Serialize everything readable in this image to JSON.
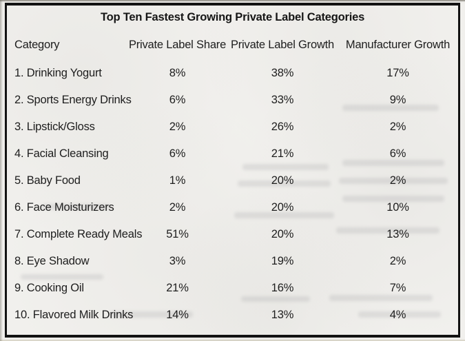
{
  "table": {
    "title": "Top Ten Fastest Growing Private Label Categories",
    "columns": [
      "Category",
      "Private Label Share",
      "Private Label Growth",
      "Manufacturer Growth"
    ],
    "rows": [
      {
        "category": "1. Drinking Yogurt",
        "share": "8%",
        "growth": "38%",
        "manufacturer": "17%"
      },
      {
        "category": "2. Sports Energy Drinks",
        "share": "6%",
        "growth": "33%",
        "manufacturer": "9%"
      },
      {
        "category": "3. Lipstick/Gloss",
        "share": "2%",
        "growth": "26%",
        "manufacturer": "2%"
      },
      {
        "category": "4. Facial Cleansing",
        "share": "6%",
        "growth": "21%",
        "manufacturer": "6%"
      },
      {
        "category": "5. Baby Food",
        "share": "1%",
        "growth": "20%",
        "manufacturer": "2%"
      },
      {
        "category": "6. Face Moisturizers",
        "share": "2%",
        "growth": "20%",
        "manufacturer": "10%"
      },
      {
        "category": "7. Complete Ready Meals",
        "share": "51%",
        "growth": "20%",
        "manufacturer": "13%"
      },
      {
        "category": "8. Eye Shadow",
        "share": "3%",
        "growth": "19%",
        "manufacturer": "2%"
      },
      {
        "category": "9. Cooking Oil",
        "share": "21%",
        "growth": "16%",
        "manufacturer": "7%"
      },
      {
        "category": "10. Flavored Milk Drinks",
        "share": "14%",
        "growth": "13%",
        "manufacturer": "4%"
      }
    ]
  },
  "chart_data": {
    "type": "table",
    "title": "Top Ten Fastest Growing Private Label Categories",
    "categories": [
      "Drinking Yogurt",
      "Sports Energy Drinks",
      "Lipstick/Gloss",
      "Facial Cleansing",
      "Baby Food",
      "Face Moisturizers",
      "Complete Ready Meals",
      "Eye Shadow",
      "Cooking Oil",
      "Flavored Milk Drinks"
    ],
    "series": [
      {
        "name": "Private Label Share",
        "unit": "%",
        "values": [
          8,
          6,
          2,
          6,
          1,
          2,
          51,
          3,
          21,
          14
        ]
      },
      {
        "name": "Private Label Growth",
        "unit": "%",
        "values": [
          38,
          33,
          26,
          21,
          20,
          20,
          20,
          19,
          16,
          13
        ]
      },
      {
        "name": "Manufacturer Growth",
        "unit": "%",
        "values": [
          17,
          9,
          2,
          6,
          2,
          10,
          13,
          2,
          7,
          4
        ]
      }
    ]
  },
  "colors": {
    "paper": "#f1f0ed",
    "border": "#121212",
    "text": "#1d1d1d"
  }
}
